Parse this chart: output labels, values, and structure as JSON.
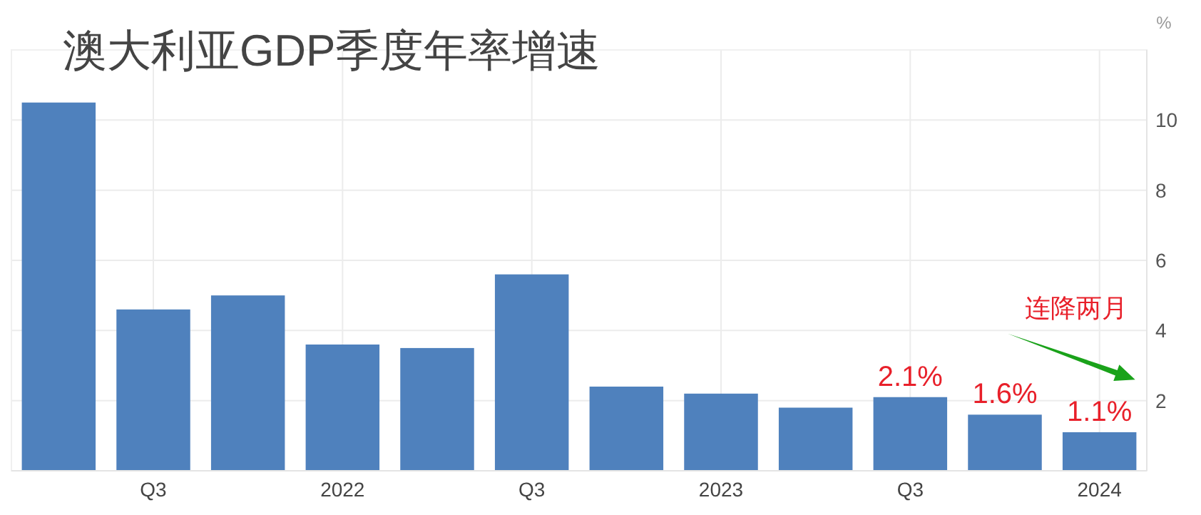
{
  "chart_data": {
    "type": "bar",
    "title": "澳大利亚GDP季度年率增速",
    "ylabel": "%",
    "categories": [
      null,
      "Q3",
      null,
      "2022",
      null,
      "Q3",
      null,
      "2023",
      null,
      "Q3",
      null,
      "2024"
    ],
    "values": [
      10.5,
      4.6,
      5.0,
      3.6,
      3.5,
      5.6,
      2.4,
      2.2,
      1.8,
      2.1,
      1.6,
      1.1
    ],
    "value_labels": [
      null,
      null,
      null,
      null,
      null,
      null,
      null,
      null,
      null,
      "2.1%",
      "1.6%",
      "1.1%"
    ],
    "color": "#4f81bd",
    "ylim": [
      0,
      12
    ],
    "yticks": [
      2,
      4,
      6,
      8,
      10
    ],
    "grid": true,
    "annotations": [
      "连降两月"
    ]
  }
}
